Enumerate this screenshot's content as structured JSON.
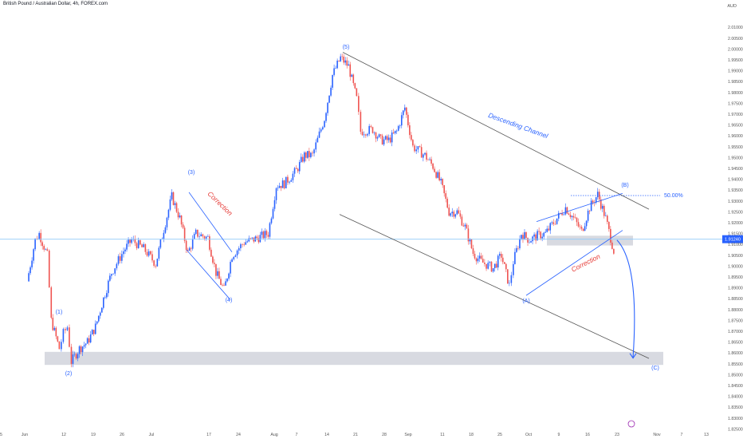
{
  "header": {
    "title": "British Pound / Australian Dollar, 4h, FOREX.com",
    "currency": "AUD"
  },
  "chart_data": {
    "type": "candlestick",
    "title": "British Pound / Australian Dollar, 4h, FOREX.com",
    "currency": "AUD",
    "ylim": [
      1.82,
      2.015
    ],
    "y_ticks": [
      "1.82500",
      "1.83000",
      "1.83500",
      "1.84000",
      "1.84500",
      "1.85000",
      "1.85500",
      "1.86000",
      "1.86500",
      "1.87000",
      "1.87500",
      "1.88000",
      "1.88500",
      "1.89000",
      "1.89500",
      "1.90000",
      "1.90500",
      "1.91000",
      "1.91500",
      "1.92000",
      "1.92500",
      "1.93000",
      "1.93500",
      "1.94000",
      "1.94500",
      "1.95000",
      "1.95500",
      "1.96000",
      "1.96500",
      "1.97000",
      "1.97500",
      "1.98000",
      "1.98500",
      "1.99000",
      "1.99500",
      "2.00000",
      "2.00500",
      "2.01000"
    ],
    "x_ticks": [
      "5",
      "Jun",
      "12",
      "19",
      "26",
      "Jul",
      "17",
      "24",
      "Aug",
      "7",
      "14",
      "21",
      "28",
      "Sep",
      "11",
      "18",
      "25",
      "Oct",
      "9",
      "16",
      "23",
      "Nov",
      "7",
      "13"
    ],
    "current_price_label": "1.91240",
    "current_price": 1.9124,
    "fib_label": "50.00%",
    "fib_level": 1.9325,
    "up_color": "#2962ff",
    "down_color": "#ef5350",
    "channel_color": "#555555",
    "annotation_color": "#2962ff",
    "annotations": {
      "descending_channel": "Descending Channel",
      "correction_1": "Correction",
      "correction_2": "Correction"
    },
    "wave_labels": [
      "(1)",
      "(2)",
      "(3)",
      "(4)",
      "(5)",
      "(A)",
      "(B)",
      "(C)"
    ],
    "price_path": [
      {
        "date": "Jun 2",
        "price": 1.893
      },
      {
        "date": "Jun 4",
        "price": 1.912
      },
      {
        "date": "Jun 5",
        "price": 1.915
      },
      {
        "date": "Jun 7",
        "price": 1.905
      },
      {
        "date": "Jun 8",
        "price": 1.875
      },
      {
        "date": "Jun 10",
        "price": 1.862
      },
      {
        "date": "Jun 11",
        "price": 1.869
      },
      {
        "date": "Jun 12",
        "price": 1.872
      },
      {
        "date": "Jun 13",
        "price": 1.856
      },
      {
        "date": "Jun 15",
        "price": 1.862
      },
      {
        "date": "Jun 17",
        "price": 1.865
      },
      {
        "date": "Jun 19",
        "price": 1.872
      },
      {
        "date": "Jun 21",
        "price": 1.885
      },
      {
        "date": "Jun 23",
        "price": 1.897
      },
      {
        "date": "Jun 26",
        "price": 1.907
      },
      {
        "date": "Jun 28",
        "price": 1.912
      },
      {
        "date": "Jul 1",
        "price": 1.908
      },
      {
        "date": "Jul 4",
        "price": 1.901
      },
      {
        "date": "Jul 6",
        "price": 1.917
      },
      {
        "date": "Jul 8",
        "price": 1.932
      },
      {
        "date": "Jul 10",
        "price": 1.922
      },
      {
        "date": "Jul 12",
        "price": 1.906
      },
      {
        "date": "Jul 14",
        "price": 1.915
      },
      {
        "date": "Jul 17",
        "price": 1.913
      },
      {
        "date": "Jul 19",
        "price": 1.897
      },
      {
        "date": "Jul 21",
        "price": 1.889
      },
      {
        "date": "Jul 23",
        "price": 1.905
      },
      {
        "date": "Jul 26",
        "price": 1.911
      },
      {
        "date": "Jul 28",
        "price": 1.912
      },
      {
        "date": "Aug 1",
        "price": 1.915
      },
      {
        "date": "Aug 3",
        "price": 1.937
      },
      {
        "date": "Aug 5",
        "price": 1.938
      },
      {
        "date": "Aug 8",
        "price": 1.944
      },
      {
        "date": "Aug 10",
        "price": 1.951
      },
      {
        "date": "Aug 12",
        "price": 1.951
      },
      {
        "date": "Aug 15",
        "price": 1.968
      },
      {
        "date": "Aug 17",
        "price": 1.988
      },
      {
        "date": "Aug 19",
        "price": 1.996
      },
      {
        "date": "Aug 21",
        "price": 1.992
      },
      {
        "date": "Aug 23",
        "price": 1.977
      },
      {
        "date": "Aug 24",
        "price": 1.962
      },
      {
        "date": "Aug 27",
        "price": 1.963
      },
      {
        "date": "Aug 29",
        "price": 1.958
      },
      {
        "date": "Aug 31",
        "price": 1.958
      },
      {
        "date": "Sep 2",
        "price": 1.962
      },
      {
        "date": "Sep 4",
        "price": 1.973
      },
      {
        "date": "Sep 6",
        "price": 1.955
      },
      {
        "date": "Sep 9",
        "price": 1.951
      },
      {
        "date": "Sep 11",
        "price": 1.946
      },
      {
        "date": "Sep 13",
        "price": 1.938
      },
      {
        "date": "Sep 15",
        "price": 1.925
      },
      {
        "date": "Sep 17",
        "price": 1.925
      },
      {
        "date": "Sep 19",
        "price": 1.918
      },
      {
        "date": "Sep 21",
        "price": 1.906
      },
      {
        "date": "Sep 23",
        "price": 1.902
      },
      {
        "date": "Sep 26",
        "price": 1.899
      },
      {
        "date": "Sep 28",
        "price": 1.905
      },
      {
        "date": "Sep 30",
        "price": 1.891
      },
      {
        "date": "Oct 1",
        "price": 1.902
      },
      {
        "date": "Oct 3",
        "price": 1.915
      },
      {
        "date": "Oct 5",
        "price": 1.912
      },
      {
        "date": "Oct 7",
        "price": 1.914
      },
      {
        "date": "Oct 9",
        "price": 1.915
      },
      {
        "date": "Oct 11",
        "price": 1.92
      },
      {
        "date": "Oct 14",
        "price": 1.927
      },
      {
        "date": "Oct 16",
        "price": 1.922
      },
      {
        "date": "Oct 18",
        "price": 1.916
      },
      {
        "date": "Oct 20",
        "price": 1.927
      },
      {
        "date": "Oct 22",
        "price": 1.933
      },
      {
        "date": "Oct 24",
        "price": 1.922
      },
      {
        "date": "Oct 26",
        "price": 1.907
      }
    ],
    "projection": [
      {
        "date": "Oct 26",
        "price": 1.912
      },
      {
        "date": "Oct 31",
        "price": 1.858
      }
    ]
  }
}
